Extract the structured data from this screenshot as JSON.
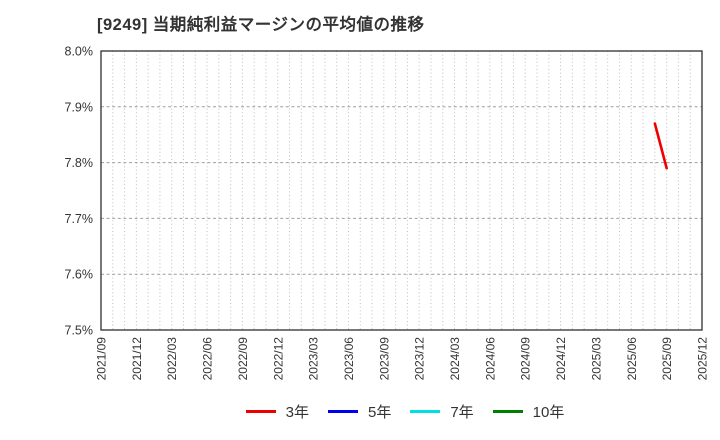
{
  "page": {
    "background": "#ffffff"
  },
  "colors": {
    "plot_border": "#2e2e2e",
    "minor_grid": "#bdbdbd",
    "major_grid": "#9e9e9e",
    "text": "#333333"
  },
  "chart_data": {
    "type": "line",
    "title": "[9249]  当期純利益マージンの平均値の推移",
    "xlabel": "",
    "ylabel": "",
    "ylim": [
      7.5,
      8.0
    ],
    "y_tick_values": [
      8.0,
      7.9,
      7.8,
      7.7,
      7.6,
      7.5
    ],
    "y_tick_labels": [
      "8.0%",
      "7.9%",
      "7.8%",
      "7.7%",
      "7.6%",
      "7.5%"
    ],
    "x_start": "2021/09",
    "x_end": "2025/12",
    "x_tick_labels": [
      "2021/09",
      "2021/12",
      "2022/03",
      "2022/06",
      "2022/09",
      "2022/12",
      "2023/03",
      "2023/06",
      "2023/09",
      "2023/12",
      "2024/03",
      "2024/06",
      "2024/09",
      "2024/12",
      "2025/03",
      "2025/06",
      "2025/09",
      "2025/12"
    ],
    "grid": true,
    "x_minor_grid": "monthly-dotted",
    "y_major_grid": "dashed",
    "legend_position": "bottom",
    "series": [
      {
        "name": "3年",
        "color": "#ee0000",
        "points": [
          {
            "x": "2025/08",
            "y": 7.87
          },
          {
            "x": "2025/09",
            "y": 7.79
          }
        ]
      },
      {
        "name": "5年",
        "color": "#0000ee",
        "points": []
      },
      {
        "name": "7年",
        "color": "#00e0e0",
        "points": []
      },
      {
        "name": "10年",
        "color": "#008000",
        "points": []
      }
    ]
  }
}
